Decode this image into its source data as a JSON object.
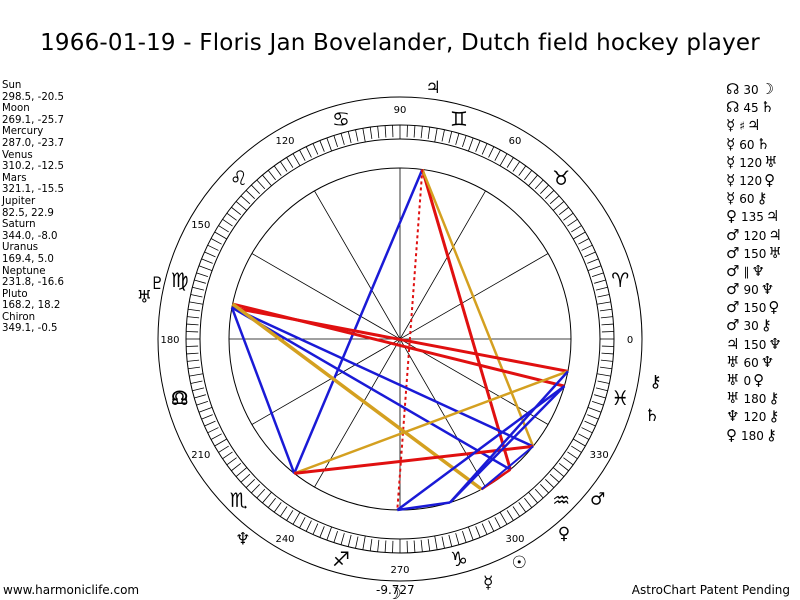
{
  "title": "1966-01-19 - Floris Jan Bovelander, Dutch field hockey player",
  "footer": {
    "left": "www.harmoniclife.com",
    "center": "-9.727",
    "right": "AstroChart Patent Pending"
  },
  "chart_data": {
    "type": "astrology-wheel",
    "title": "1966-01-19 - Floris Jan Bovelander, Dutch field hockey player",
    "degree_ticks": [
      "90",
      "60",
      "0",
      "330",
      "300",
      "270",
      "240",
      "210",
      "180",
      "150",
      "120"
    ],
    "planets": [
      {
        "name": "Sun",
        "values": "298.5, -20.5",
        "lon": 298.5,
        "glyph": "☉"
      },
      {
        "name": "Moon",
        "values": "269.1, -25.7",
        "lon": 269.1,
        "glyph": "☽"
      },
      {
        "name": "Mercury",
        "values": "287.0, -23.7",
        "lon": 287.0,
        "glyph": "☿"
      },
      {
        "name": "Venus",
        "values": "310.2, -12.5",
        "lon": 310.2,
        "glyph": "♀"
      },
      {
        "name": "Mars",
        "values": "321.1, -15.5",
        "lon": 321.1,
        "glyph": "♂"
      },
      {
        "name": "Jupiter",
        "values": "82.5, 22.9",
        "lon": 82.5,
        "glyph": "♃"
      },
      {
        "name": "Saturn",
        "values": "344.0, -8.0",
        "lon": 344.0,
        "glyph": "♄"
      },
      {
        "name": "Uranus",
        "values": "169.4, 5.0",
        "lon": 169.4,
        "glyph": "♅"
      },
      {
        "name": "Neptune",
        "values": "231.8, -16.6",
        "lon": 231.8,
        "glyph": "♆"
      },
      {
        "name": "Pluto",
        "values": "168.2, 18.2",
        "lon": 168.2,
        "glyph": "♇"
      },
      {
        "name": "Chiron",
        "values": "349.1, -0.5",
        "lon": 349.1,
        "glyph": "⚷"
      }
    ],
    "aspects": [
      {
        "p1": "☊",
        "angle": "30",
        "p2": "☽"
      },
      {
        "p1": "☊",
        "angle": "45",
        "p2": "♄"
      },
      {
        "p1": "☿",
        "angle": "♯",
        "p2": "♃"
      },
      {
        "p1": "☿",
        "angle": "60",
        "p2": "♄"
      },
      {
        "p1": "☿",
        "angle": "120",
        "p2": "♅"
      },
      {
        "p1": "☿",
        "angle": "120",
        "p2": "♀"
      },
      {
        "p1": "☿",
        "angle": "60",
        "p2": "⚷"
      },
      {
        "p1": "♀",
        "angle": "135",
        "p2": "♃"
      },
      {
        "p1": "♂",
        "angle": "120",
        "p2": "♃"
      },
      {
        "p1": "♂",
        "angle": "150",
        "p2": "♅"
      },
      {
        "p1": "♂",
        "angle": "∥",
        "p2": "♆"
      },
      {
        "p1": "♂",
        "angle": "90",
        "p2": "♆"
      },
      {
        "p1": "♂",
        "angle": "150",
        "p2": "♀"
      },
      {
        "p1": "♂",
        "angle": "30",
        "p2": "⚷"
      },
      {
        "p1": "♃",
        "angle": "150",
        "p2": "♆"
      },
      {
        "p1": "♅",
        "angle": "60",
        "p2": "♆"
      },
      {
        "p1": "♅",
        "angle": "0",
        "p2": "♀"
      },
      {
        "p1": "♅",
        "angle": "180",
        "p2": "⚷"
      },
      {
        "p1": "♆",
        "angle": "120",
        "p2": "⚷"
      },
      {
        "p1": "♀",
        "angle": "180",
        "p2": "⚷"
      }
    ],
    "sign_glyphs": [
      "♈",
      "♉",
      "♊",
      "♋",
      "♌",
      "♍",
      "♎",
      "♏",
      "♐",
      "♑",
      "♒",
      "♓"
    ],
    "node_glyph": "☊",
    "colors": {
      "blue": "#1a1ad6",
      "red": "#e01010",
      "gold": "#d4a020"
    }
  }
}
